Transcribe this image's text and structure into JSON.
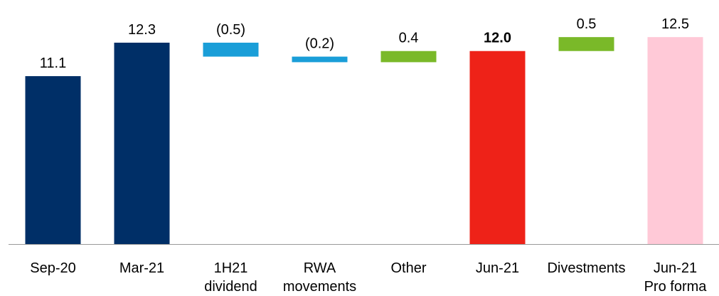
{
  "chart_data": {
    "type": "waterfall",
    "categories": [
      "Sep-20",
      "Mar-21",
      "1H21\ndividend",
      "RWA\nmovements",
      "Other",
      "Jun-21",
      "Divestments",
      "Jun-21\nPro forma"
    ],
    "values": [
      11.1,
      12.3,
      -0.5,
      -0.2,
      0.4,
      12.0,
      0.5,
      12.5
    ],
    "value_labels": [
      "11.1",
      "12.3",
      "(0.5)",
      "(0.2)",
      "0.4",
      "12.0",
      "0.5",
      "12.5"
    ],
    "measure": [
      "absolute",
      "absolute",
      "relative",
      "relative",
      "relative",
      "absolute",
      "relative",
      "absolute"
    ],
    "colors": [
      "#002f67",
      "#002f67",
      "#1a9ed8",
      "#1a9ed8",
      "#7ab929",
      "#ee2218",
      "#7ab929",
      "#ffc9d7"
    ],
    "bold_index": 5,
    "ylim": [
      5.08,
      13.83
    ]
  }
}
